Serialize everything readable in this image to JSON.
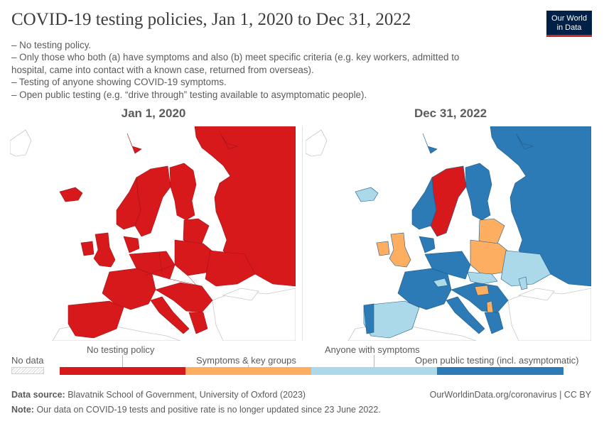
{
  "header": {
    "title": "COVID-19 testing policies, Jan 1, 2020 to Dec 31, 2022",
    "logo_line1": "Our World",
    "logo_line2": "in Data",
    "subtitle_lines": [
      "– No testing policy.",
      "– Only those who both (a) have symptoms and also (b) meet specific criteria (e.g. key workers, admitted to",
      "hospital, came into contact with a known case, returned from overseas).",
      "– Testing of anyone showing COVID-19 symptoms.",
      "– Open public testing (e.g. “drive through” testing available to asymptomatic people)."
    ]
  },
  "maps": {
    "left_title": "Jan 1, 2020",
    "right_title": "Dec 31, 2022",
    "left_policy": "No testing policy",
    "right_policies": {
      "Russia": "Open public testing (incl. asymptomatic)",
      "Norway": "Open public testing (incl. asymptomatic)",
      "Sweden": "No testing policy",
      "Finland": "Open public testing (incl. asymptomatic)",
      "Iceland": "Anyone with symptoms",
      "Ireland": "Symptoms & key groups",
      "United Kingdom": "Symptoms & key groups",
      "Spain": "Anyone with symptoms",
      "Portugal": "Open public testing (incl. asymptomatic)",
      "France": "Open public testing (incl. asymptomatic)",
      "Poland": "Symptoms & key groups",
      "Lithuania": "Symptoms & key groups",
      "Ukraine": "Anyone with symptoms",
      "Slovakia": "Anyone with symptoms",
      "Hungary": "Symptoms & key groups",
      "Albania": "Symptoms & key groups",
      "Moldova": "Anyone with symptoms"
    }
  },
  "legend": {
    "no_data": "No data",
    "bins": [
      {
        "label": "No testing policy",
        "color": "#d7191c"
      },
      {
        "label": "Symptoms & key groups",
        "color": "#fdae61"
      },
      {
        "label": "Anyone with symptoms",
        "color": "#abd9e9"
      },
      {
        "label": "Open public testing (incl. asymptomatic)",
        "color": "#2c7bb6"
      }
    ]
  },
  "colors": {
    "no_testing": "#d7191c",
    "symptoms_key": "#fdae61",
    "anyone_symptoms": "#abd9e9",
    "open_public": "#2c7bb6",
    "land_nodata": "#ffffff",
    "border": "#c8c8c8"
  },
  "footer": {
    "source_label": "Data source:",
    "source_text": "Blavatnik School of Government, University of Oxford (2023)",
    "url": "OurWorldinData.org/coronavirus | CC BY",
    "note_label": "Note:",
    "note_text": "Our data on COVID-19 tests and positive rate is no longer updated since 23 June 2022."
  }
}
